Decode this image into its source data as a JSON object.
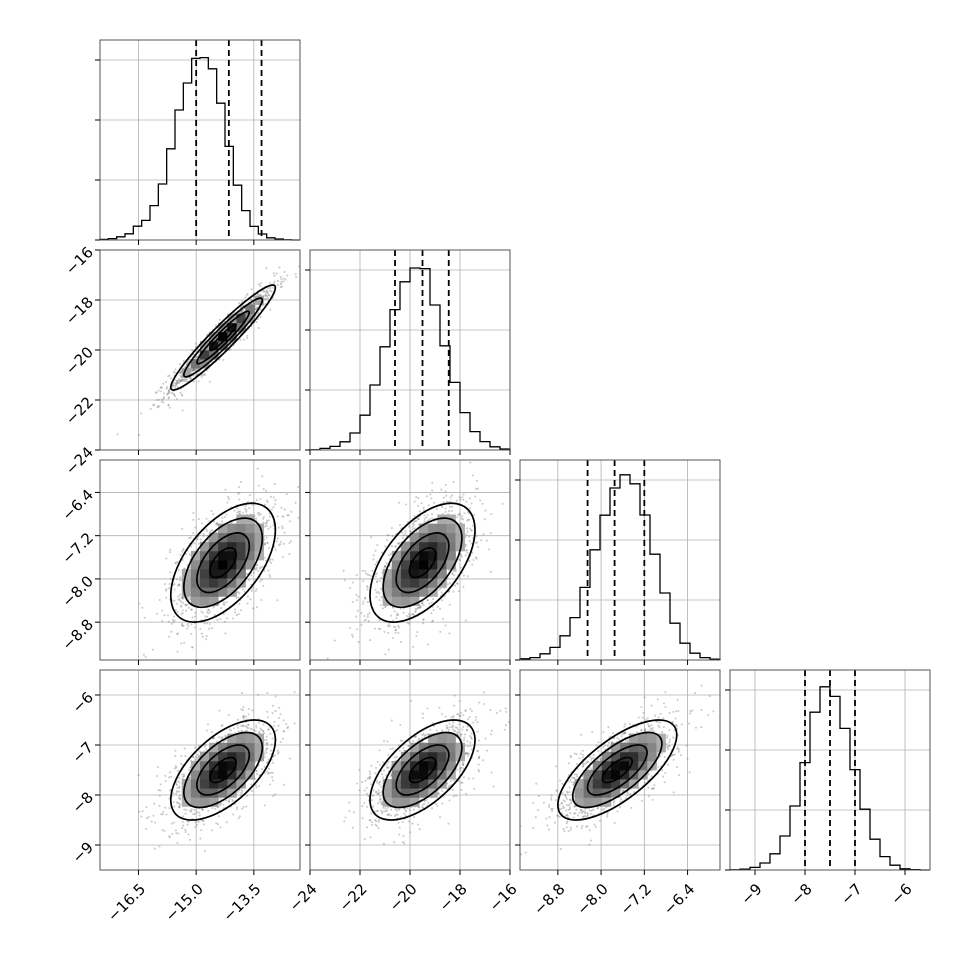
{
  "chart_data": {
    "type": "corner",
    "parameters": [
      {
        "mean": -14.3,
        "sd": 0.68,
        "range": [
          -17.5,
          -12.3
        ],
        "ticks": [
          -16.5,
          -15.0,
          -13.5
        ],
        "tick_labels": [
          "−16.5",
          "−15.0",
          "−13.5"
        ],
        "quantiles": [
          -15.0,
          -14.15,
          -13.3
        ],
        "hist_counts": [
          0.3,
          0.7,
          1.6,
          3.1,
          6.9,
          9.8,
          17.2,
          28.0,
          45.6,
          65.0,
          78.5,
          90.8,
          91.2,
          85.6,
          68.4,
          46.8,
          27.4,
          14.7,
          6.8,
          3.0,
          1.1,
          0.5,
          0.1,
          0.0
        ]
      },
      {
        "mean": -19.5,
        "sd": 1.05,
        "range": [
          -24.0,
          -16.0
        ],
        "ticks": [
          -24,
          -22,
          -20,
          -18,
          -16
        ],
        "tick_labels": [
          "−24",
          "−22",
          "−20",
          "−18",
          "−16"
        ],
        "quantiles": [
          -20.6,
          -19.5,
          -18.45
        ],
        "hist_counts": [
          0.1,
          0.8,
          1.8,
          4.1,
          8.5,
          17.4,
          32.5,
          51.6,
          70.2,
          84.1,
          91.0,
          90.7,
          72.5,
          52.1,
          33.8,
          18.7,
          9.2,
          4.2,
          1.6,
          0.5
        ]
      },
      {
        "mean": -7.7,
        "sd": 0.55,
        "range": [
          -9.5,
          -5.8
        ],
        "ticks": [
          -8.8,
          -8.0,
          -7.2,
          -6.4
        ],
        "tick_labels": [
          "−8.8",
          "−8.0",
          "−7.2",
          "−6.4"
        ],
        "quantiles": [
          -8.25,
          -7.75,
          -7.2
        ],
        "hist_counts": [
          0.6,
          1.2,
          3.1,
          6.3,
          12.1,
          21.2,
          36.3,
          55.1,
          72.4,
          86.0,
          92.6,
          88.1,
          72.5,
          52.9,
          33.5,
          18.4,
          8.4,
          3.4,
          1.2,
          0.4
        ]
      },
      {
        "mean": -7.5,
        "sd": 0.5,
        "range": [
          -9.5,
          -5.5
        ],
        "ticks": [
          -9,
          -8,
          -7,
          -6
        ],
        "tick_labels": [
          "−9",
          "−8",
          "−7",
          "−6"
        ],
        "quantiles": [
          -8.0,
          -7.5,
          -7.0
        ],
        "hist_counts": [
          0.1,
          0.4,
          1.3,
          3.5,
          8.1,
          17.0,
          32.0,
          53.7,
          78.9,
          91.6,
          86.8,
          70.8,
          50.2,
          30.4,
          15.4,
          6.7,
          2.4,
          0.6,
          0.2,
          0.0
        ]
      }
    ],
    "correlations": [
      {
        "x": 0,
        "y": 1,
        "rho": 0.95
      },
      {
        "x": 0,
        "y": 2,
        "rho": 0.55
      },
      {
        "x": 1,
        "y": 2,
        "rho": 0.55
      },
      {
        "x": 0,
        "y": 3,
        "rho": 0.6
      },
      {
        "x": 1,
        "y": 3,
        "rho": 0.6
      },
      {
        "x": 2,
        "y": 3,
        "rho": 0.7
      }
    ],
    "diag_hist_ticks": [
      0,
      30,
      60,
      90
    ],
    "contour_levels_sigma": [
      0.5,
      1.0,
      1.5,
      2.0
    ],
    "samples_per_panel": 1300,
    "grid": true,
    "colors": {
      "line": "#000000",
      "grid": "#b0b0b0",
      "points": "#6e6e6e",
      "frame": "#555555"
    }
  }
}
